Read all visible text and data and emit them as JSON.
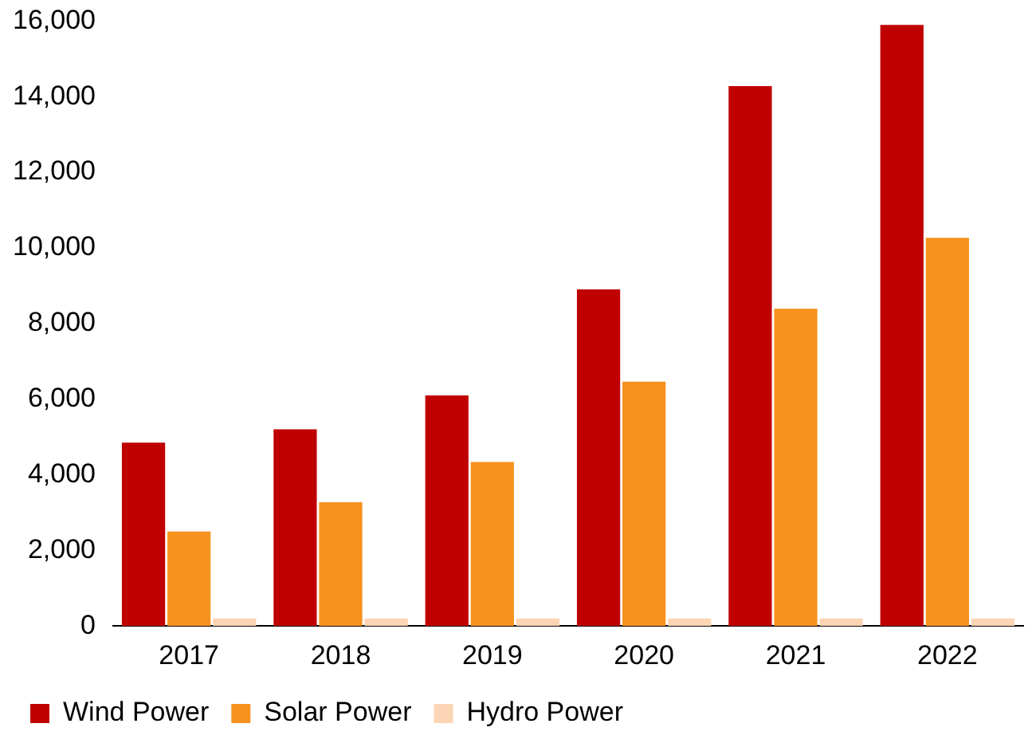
{
  "chart_data": {
    "type": "bar",
    "categories": [
      "2017",
      "2018",
      "2019",
      "2020",
      "2021",
      "2022"
    ],
    "series": [
      {
        "name": "Wind Power",
        "color": "#c00000",
        "values": [
          4850,
          5200,
          6100,
          8900,
          14280,
          15900
        ]
      },
      {
        "name": "Solar Power",
        "color": "#f7921e",
        "values": [
          2500,
          3270,
          4340,
          6460,
          8390,
          10270
        ]
      },
      {
        "name": "Hydro Power",
        "color": "#fcd5b5",
        "values": [
          200,
          200,
          200,
          200,
          200,
          200
        ]
      }
    ],
    "ylim": [
      0,
      16000
    ],
    "yticks": [
      0,
      {
        "value": 2000,
        "label": "2,000"
      },
      {
        "value": 4000,
        "label": "4,000"
      },
      {
        "value": 6000,
        "label": "6,000"
      },
      {
        "value": 8000,
        "label": "8,000"
      },
      {
        "value": 10000,
        "label": "10,000"
      },
      {
        "value": 12000,
        "label": "12,000"
      },
      {
        "value": 14000,
        "label": "14,000"
      },
      {
        "value": 16000,
        "label": "16,000"
      }
    ],
    "grid": false,
    "legend": "bottom"
  }
}
